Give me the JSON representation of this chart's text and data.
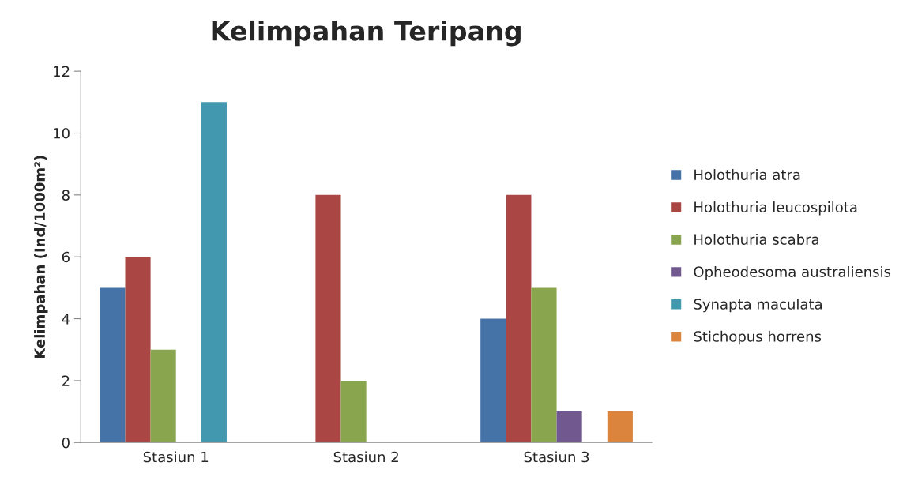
{
  "chart_data": {
    "type": "bar",
    "title": "Kelimpahan Teripang",
    "ylabel": "Kelimpahan (Ind/1000m²)",
    "categories": [
      "Stasiun 1",
      "Stasiun 2",
      "Stasiun 3"
    ],
    "series": [
      {
        "name": "Holothuria atra",
        "color": "#4572a7",
        "values": [
          5,
          null,
          4
        ]
      },
      {
        "name": "Holothuria leucospilota",
        "color": "#aa4643",
        "values": [
          6,
          8,
          8
        ]
      },
      {
        "name": "Holothuria scabra",
        "color": "#89a54e",
        "values": [
          3,
          2,
          5
        ]
      },
      {
        "name": "Opheodesoma australiensis",
        "color": "#71588f",
        "values": [
          null,
          null,
          1
        ]
      },
      {
        "name": "Synapta maculata",
        "color": "#4198af",
        "values": [
          11,
          null,
          null
        ]
      },
      {
        "name": "Stichopus horrens",
        "color": "#db843d",
        "values": [
          null,
          null,
          1
        ]
      }
    ],
    "ylim": [
      0,
      12
    ],
    "yticks": [
      0,
      2,
      4,
      6,
      8,
      10,
      12
    ],
    "grid": false,
    "legend": "right"
  }
}
